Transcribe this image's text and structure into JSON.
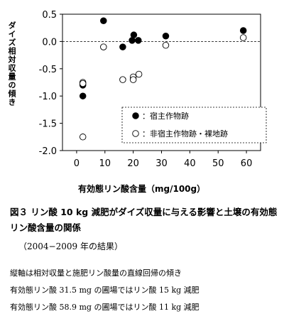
{
  "figure": {
    "title": "図３ リン酸 10 kg 減肥がダイズ収量に与える影響と土壌の有効態リン酸含量の関係",
    "period": "（2004−2009 年の結果）",
    "notes": [
      "縦軸は相対収量と施肥リン酸量の直線回帰の傾き",
      "有効態リン酸 31.5 mg の圃場ではリン酸 15 kg 減肥",
      "有効態リン酸 58.9 mg の圃場ではリン酸 11 kg 減肥"
    ]
  },
  "chart_data": {
    "type": "scatter",
    "title": "",
    "xlabel": "有効態リン酸含量（mg/100g）",
    "ylabel": "ダイズ相対収量の傾き",
    "xlim": [
      -5,
      65
    ],
    "ylim": [
      -2.0,
      0.5
    ],
    "xticks": [
      0,
      10,
      20,
      30,
      40,
      50,
      60
    ],
    "yticks": [
      0.5,
      0.0,
      -0.5,
      -1.0,
      -1.5,
      -2.0
    ],
    "ytick_labels": [
      "0.5",
      "0.0",
      "-0.5",
      "-1.0",
      "-1.5",
      "-2.0"
    ],
    "reference_line_y": 0,
    "legend_position": "bottom-right",
    "series": [
      {
        "name": "：宿主作物跡",
        "marker": "filled",
        "color": "#000000",
        "points": [
          {
            "x": 2.2,
            "y": -0.8
          },
          {
            "x": 2.2,
            "y": -1.0
          },
          {
            "x": 9.5,
            "y": 0.38
          },
          {
            "x": 16.3,
            "y": -0.1
          },
          {
            "x": 19.6,
            "y": 0.02
          },
          {
            "x": 20.2,
            "y": 0.12
          },
          {
            "x": 21.8,
            "y": 0.02
          },
          {
            "x": 31.5,
            "y": 0.1
          },
          {
            "x": 58.9,
            "y": 0.2
          }
        ]
      },
      {
        "name": "：非宿主作物跡・裸地跡",
        "marker": "open",
        "color": "#000000",
        "points": [
          {
            "x": 2.2,
            "y": -0.75
          },
          {
            "x": 2.2,
            "y": -0.77
          },
          {
            "x": 2.2,
            "y": -1.75
          },
          {
            "x": 9.5,
            "y": -0.1
          },
          {
            "x": 16.3,
            "y": -0.7
          },
          {
            "x": 20.0,
            "y": -0.65
          },
          {
            "x": 20.0,
            "y": -0.7
          },
          {
            "x": 22.0,
            "y": -0.6
          },
          {
            "x": 31.5,
            "y": -0.07
          },
          {
            "x": 58.9,
            "y": 0.07
          }
        ]
      }
    ]
  }
}
